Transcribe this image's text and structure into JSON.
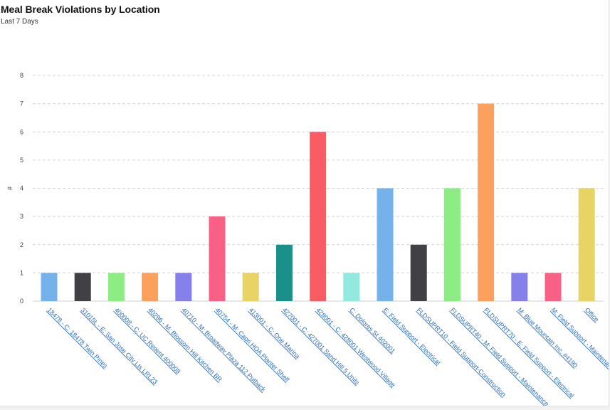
{
  "title": "Meal Break Violations by Location",
  "subtitle": "Last 7 Days",
  "chart_data": {
    "type": "bar",
    "title": "Meal Break Violations by Location",
    "subtitle": "Last 7 Days",
    "ylabel": "#",
    "xlabel": "",
    "ylim": [
      0,
      8
    ],
    "yticks": [
      0,
      1,
      2,
      3,
      4,
      5,
      6,
      7,
      8
    ],
    "grid": true,
    "categories": [
      "18478 - C: 18478 Twin Pines",
      "31015L - E: San Jose City Lts LRL23",
      "400008 - C: UC Regent 400008",
      "40296 - M: Blossom Hill Kitchen BR",
      "40710 - M: Broadway Plaza 112 Putback",
      "40754 - M: Capri HOA Planter Shelf",
      "413001 - C: One Marina",
      "427001 - C: 427001 Sand Hill 5 Units",
      "428001 - C: 428001 Westwood Village",
      "C: Dolores St 402001",
      "E: Field Support - Electrical",
      "FLDSUPRT10 - Field Support-Construction",
      "FLDSUPRT40 - M: Field Support - Maintenance",
      "FLDSUPRT70 - E: Field Support - Electrical",
      "M: Blue Mountain Inc. #4190",
      "M: Field Support - Maintenance",
      "Office"
    ],
    "values": [
      1,
      1,
      1,
      1,
      1,
      3,
      1,
      2,
      6,
      1,
      4,
      2,
      4,
      7,
      1,
      1,
      4
    ],
    "colors": [
      "#75b1ea",
      "#404045",
      "#8ded84",
      "#fca05e",
      "#8580ea",
      "#f86085",
      "#e8d365",
      "#1a9089",
      "#f95c62",
      "#92e9df",
      "#75b1ea",
      "#404045",
      "#8ded84",
      "#fca05e",
      "#8580ea",
      "#f86085",
      "#e8d365"
    ]
  }
}
